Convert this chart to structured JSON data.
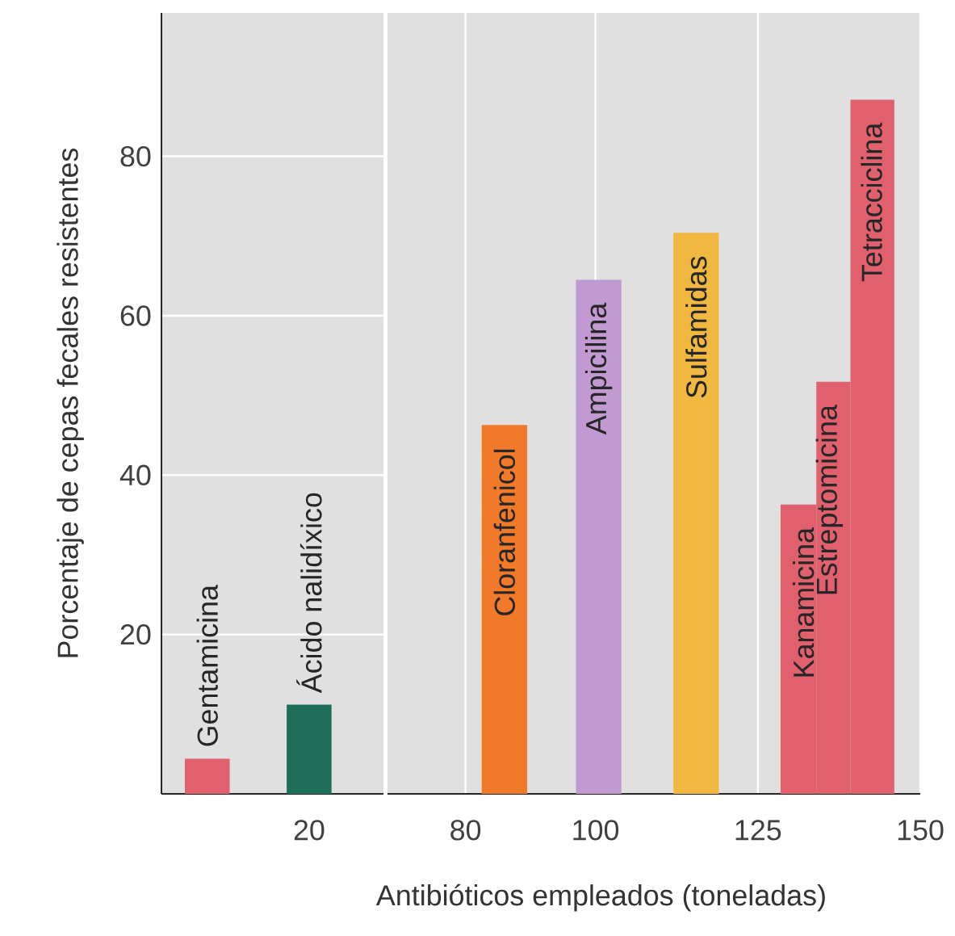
{
  "chart_data": [
    {
      "type": "bar",
      "ylabel": "Porcentaje de cepas fecales resistentes",
      "categories": [
        null,
        "20"
      ],
      "ylim": [
        0,
        98
      ],
      "yticks": [
        20,
        40,
        60,
        80
      ],
      "grid": "y",
      "series": [
        {
          "name": "Gentamicina",
          "color": "#e0606e",
          "values": [
            4.4,
            null
          ]
        },
        {
          "name": "Ácido nalidíxico",
          "color": "#1e6e5a",
          "values": [
            null,
            11.2
          ]
        }
      ]
    },
    {
      "type": "bar",
      "xlabel": "Antibióticos empleados (toneladas)",
      "xlim": [
        68,
        150
      ],
      "xticks": [
        80,
        100,
        125,
        150
      ],
      "ylim": [
        0,
        98
      ],
      "yticks": [
        20,
        40,
        60,
        80
      ],
      "grid": true,
      "tick_labels": "x",
      "series": [
        {
          "name": "Cloranfenicol",
          "color": "#f07a2a",
          "x": [
            86
          ],
          "values": [
            46.3
          ]
        },
        {
          "name": "Ampicilina",
          "color": "#c09ad0",
          "x": [
            100.5
          ],
          "values": [
            64.5
          ]
        },
        {
          "name": "Sulfamidas",
          "color": "#f0b840",
          "x": [
            115.5
          ],
          "values": [
            70.4
          ]
        },
        {
          "name": "Kanamicina",
          "color": "#e0606e",
          "x": [
            132
          ],
          "values": [
            36.3
          ]
        },
        {
          "name": "Estreptomicina",
          "color": "#e0606e",
          "x": [
            136
          ],
          "values": [
            51.7
          ]
        },
        {
          "name": "Tetracciclina",
          "color": "#e0606e",
          "x": [
            142.5
          ],
          "values": [
            87.1
          ]
        }
      ]
    }
  ]
}
